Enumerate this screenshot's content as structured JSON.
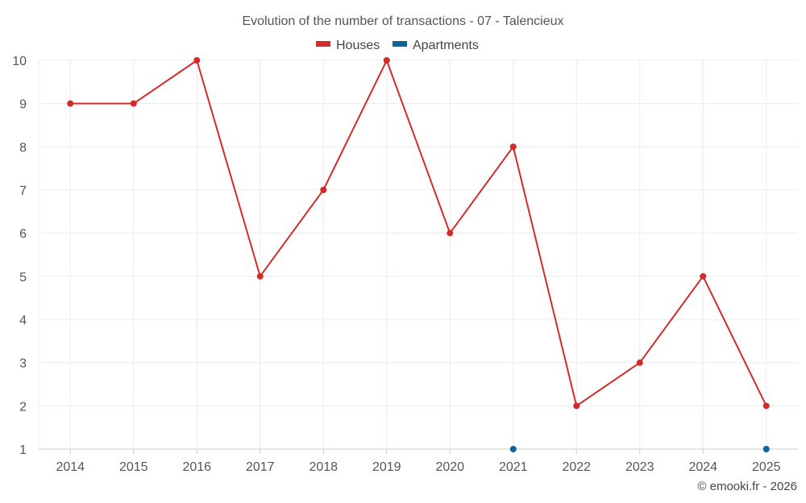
{
  "chart_data": {
    "type": "line",
    "title": "Evolution of the number of transactions - 07 - Talencieux",
    "categories": [
      "2014",
      "2015",
      "2016",
      "2017",
      "2018",
      "2019",
      "2020",
      "2021",
      "2022",
      "2023",
      "2024",
      "2025"
    ],
    "series": [
      {
        "name": "Houses",
        "color": "#d32a2a",
        "values": [
          9,
          9,
          10,
          5,
          7,
          10,
          6,
          8,
          2,
          3,
          5,
          2
        ]
      },
      {
        "name": "Apartments",
        "color": "#0b6399",
        "values": [
          null,
          null,
          null,
          null,
          null,
          null,
          null,
          1,
          null,
          null,
          null,
          1
        ]
      }
    ],
    "y_ticks": [
      "1",
      "2",
      "3",
      "4",
      "5",
      "6",
      "7",
      "8",
      "9",
      "10"
    ],
    "ylim": [
      1,
      10
    ],
    "xlabel": "",
    "ylabel": "",
    "grid": true,
    "legend_position": "top-center"
  },
  "credit": "© emooki.fr - 2026"
}
